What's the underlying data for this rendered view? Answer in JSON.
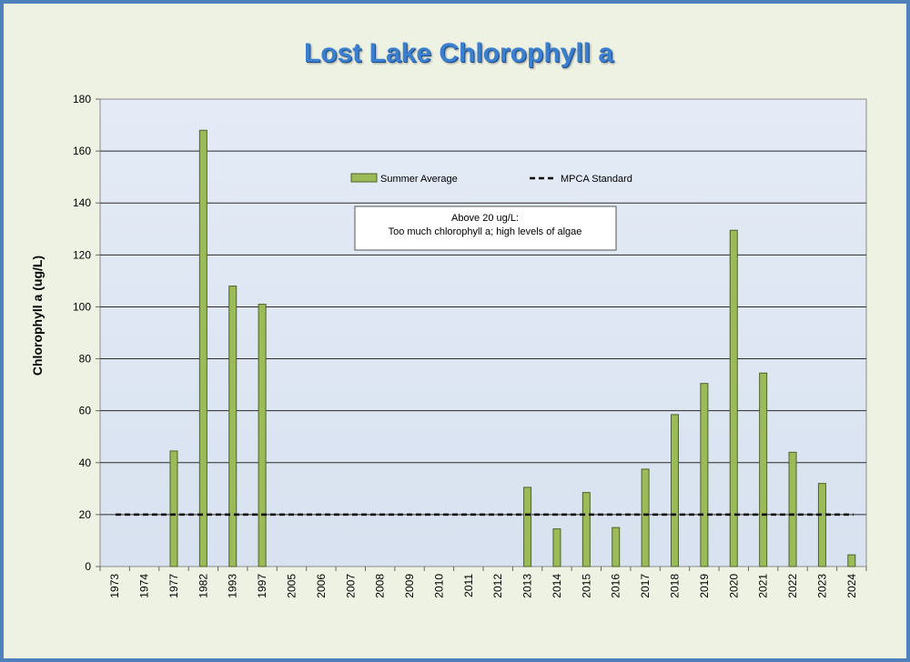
{
  "chart_data": {
    "type": "bar",
    "title": "Lost Lake Chlorophyll a",
    "xlabel": "",
    "ylabel": "Chlorophyll a (ug/L)",
    "ylim": [
      0,
      180
    ],
    "yticks": [
      "0",
      "20",
      "40",
      "60",
      "80",
      "100",
      "120",
      "140",
      "160",
      "180"
    ],
    "grid": true,
    "legend_position": "top-center",
    "categories": [
      "1973",
      "1974",
      "1977",
      "1982",
      "1993",
      "1997",
      "2005",
      "2006",
      "2007",
      "2008",
      "2009",
      "2010",
      "2011",
      "2012",
      "2013",
      "2014",
      "2015",
      "2016",
      "2017",
      "2018",
      "2019",
      "2020",
      "2021",
      "2022",
      "2023",
      "2024"
    ],
    "series": [
      {
        "name": "Summer Average",
        "color": "#9bbb59",
        "values": [
          null,
          null,
          44.5,
          168,
          108,
          101,
          null,
          null,
          null,
          null,
          null,
          null,
          null,
          null,
          30.5,
          14.5,
          28.5,
          15,
          37.5,
          58.5,
          70.5,
          129.5,
          74.5,
          44,
          32,
          4.5
        ]
      }
    ],
    "reference_line": {
      "name": "MPCA Standard",
      "value": 20,
      "style": "dashed",
      "color": "#000000"
    },
    "annotation": {
      "line1": "Above 20 ug/L:",
      "line2": "Too much chlorophyll a; high levels of algae"
    }
  },
  "colors": {
    "frame_border": "#4f81bd",
    "frame_background": "#eef2e2",
    "plot_background": "#dce6f2",
    "title": "#3a7fd0",
    "bar_fill": "#9bbb59",
    "bar_stroke": "#4f6228"
  }
}
